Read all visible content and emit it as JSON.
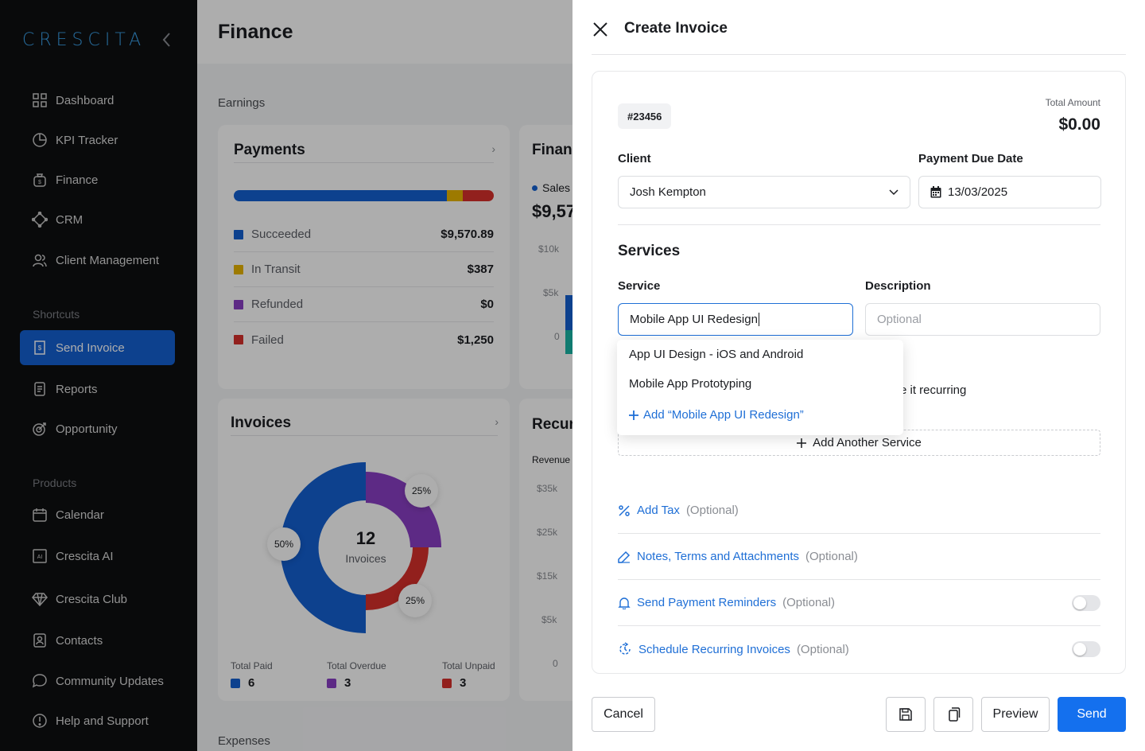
{
  "sidebar": {
    "logo": "CRESCITA",
    "items_main": [
      {
        "label": "Dashboard",
        "icon": "grid-icon"
      },
      {
        "label": "KPI Tracker",
        "icon": "pie-icon"
      },
      {
        "label": "Finance",
        "icon": "money-bag-icon"
      },
      {
        "label": "CRM",
        "icon": "network-icon"
      },
      {
        "label": "Client Management",
        "icon": "users-icon"
      }
    ],
    "section_shortcuts": "Shortcuts",
    "items_shortcuts": [
      {
        "label": "Send Invoice",
        "icon": "invoice-icon",
        "active": true
      },
      {
        "label": "Reports",
        "icon": "report-icon"
      },
      {
        "label": "Opportunity",
        "icon": "target-icon"
      }
    ],
    "section_products": "Products",
    "items_products": [
      {
        "label": "Calendar",
        "icon": "calendar-icon"
      },
      {
        "label": "Crescita AI",
        "icon": "ai-icon"
      },
      {
        "label": "Crescita Club",
        "icon": "diamond-icon"
      },
      {
        "label": "Contacts",
        "icon": "contacts-icon"
      },
      {
        "label": "Community Updates",
        "icon": "chat-icon"
      },
      {
        "label": "Help and Support",
        "icon": "help-icon"
      }
    ]
  },
  "main": {
    "title": "Finance",
    "earnings_label": "Earnings",
    "expenses_label": "Expenses",
    "payments": {
      "title": "Payments",
      "rows": [
        {
          "label": "Succeeded",
          "value": "$9,570.89",
          "color": "#1460d2"
        },
        {
          "label": "In Transit",
          "value": "$387",
          "color": "#e8b400"
        },
        {
          "label": "Refunded",
          "value": "$0",
          "color": "#8a3fc4"
        },
        {
          "label": "Failed",
          "value": "$1,250",
          "color": "#d7302b"
        }
      ]
    },
    "finance_card": {
      "title": "Finance",
      "legend": "Sales",
      "value": "$9,57",
      "axis": [
        "$10k",
        "$5k",
        "0"
      ]
    },
    "invoices": {
      "title": "Invoices",
      "center_value": "12",
      "center_label": "Invoices",
      "pct_labels": [
        "25%",
        "50%",
        "25%"
      ],
      "legend": [
        {
          "label": "Total Paid",
          "value": "6",
          "color": "#1460d2"
        },
        {
          "label": "Total Overdue",
          "value": "3",
          "color": "#8a3fc4"
        },
        {
          "label": "Total Unpaid",
          "value": "3",
          "color": "#d7302b"
        }
      ]
    },
    "recurring_card": {
      "title": "Recur",
      "sublabel": "Revenue",
      "axis": [
        "$35k",
        "$25k",
        "$15k",
        "$5k",
        "0"
      ]
    }
  },
  "drawer": {
    "title": "Create Invoice",
    "invoice_number": "#23456",
    "total_label": "Total Amount",
    "total_value": "$0.00",
    "client_label": "Client",
    "client_value": "Josh Kempton",
    "due_label": "Payment Due Date",
    "due_value": "13/03/2025",
    "services_title": "Services",
    "service_label": "Service",
    "service_value": "Mobile App UI Redesign",
    "description_label": "Description",
    "description_placeholder": "Optional",
    "recurring_partial": "e it recurring",
    "dropdown": {
      "items": [
        "App UI Design - iOS and Android",
        "Mobile App Prototyping"
      ],
      "add_label": "Add “Mobile App UI Redesign”"
    },
    "add_service": "Add Another Service",
    "options": [
      {
        "label": "Add Tax",
        "suffix": "(Optional)",
        "icon": "percent-icon",
        "toggle": false
      },
      {
        "label": "Notes, Terms and Attachments",
        "suffix": "(Optional)",
        "icon": "pencil-icon",
        "toggle": false
      },
      {
        "label": "Send Payment Reminders",
        "suffix": "(Optional)",
        "icon": "bell-icon",
        "toggle": true
      },
      {
        "label": "Schedule Recurring Invoices",
        "suffix": "(Optional)",
        "icon": "recurring-icon",
        "toggle": true
      }
    ],
    "footer": {
      "cancel": "Cancel",
      "preview": "Preview",
      "send": "Send"
    }
  }
}
